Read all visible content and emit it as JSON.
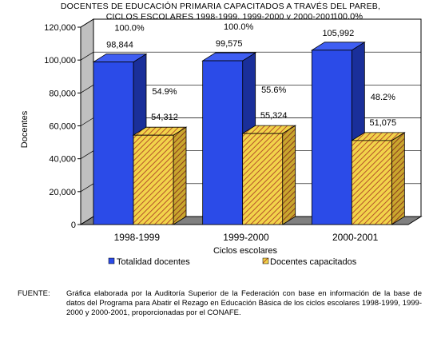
{
  "title_lines": [
    "DOCENTES DE EDUCACIÓN PRIMARIA CAPACITADOS A TRAVÉS DEL PAREB,",
    "CICLOS ESCOLARES 1998-1999, 1999-2000 y 2000-2001"
  ],
  "chart_data": {
    "type": "bar",
    "categories": [
      "1998-1999",
      "1999-2000",
      "2000-2001"
    ],
    "series": [
      {
        "name": "Totalidad docentes",
        "values": [
          98844,
          99575,
          105992
        ],
        "value_labels": [
          "98,844",
          "99,575",
          "105,992"
        ],
        "pct_labels": [
          "100.0%",
          "100.0%",
          "100.0%"
        ],
        "color": "#2b4be8"
      },
      {
        "name": "Docentes capacitados",
        "values": [
          54312,
          55324,
          51075
        ],
        "value_labels": [
          "54,312",
          "55,324",
          "51,075"
        ],
        "pct_labels": [
          "54.9%",
          "55.6%",
          "48.2%"
        ],
        "color": "#f2d34a",
        "hatch": "#b5532a"
      }
    ],
    "xlabel": "Ciclos escolares",
    "ylabel": "Docentes",
    "ylim": [
      0,
      120000
    ],
    "yticks": [
      0,
      20000,
      40000,
      60000,
      80000,
      100000,
      120000
    ],
    "ytick_labels": [
      "0",
      "20,000",
      "40,000",
      "60,000",
      "80,000",
      "100,000",
      "120,000"
    ],
    "grid": true,
    "legend": "bottom",
    "style": "3d"
  },
  "source": {
    "label": "FUENTE:",
    "text": "Gráfica elaborada por la Auditoría Superior de la Federación con base en información de la base de datos del Programa para Abatir el Rezago en Educación Básica de los ciclos escolares 1998-1999, 1999-2000 y 2000-2001, proporcionadas por el CONAFE."
  }
}
